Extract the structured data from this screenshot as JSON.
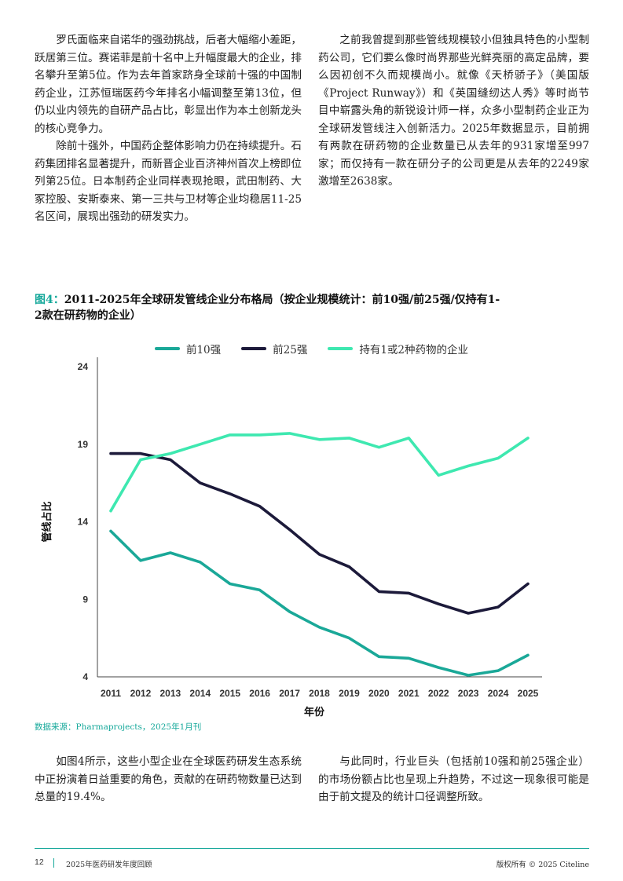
{
  "body": {
    "col1_p1": "罗氏面临来自诺华的强劲挑战，后者大幅缩小差距，跃居第三位。赛诺菲是前十名中上升幅度最大的企业，排名攀升至第5位。作为去年首家跻身全球前十强的中国制药企业，江苏恒瑞医药今年排名小幅调整至第13位，但仍以业内领先的自研产品占比，彰显出作为本土创新龙头的核心竞争力。",
    "col1_p2": "除前十强外，中国药企整体影响力仍在持续提升。石药集团排名显著提升，而新晋企业百济神州首次上榜即位列第25位。日本制药企业同样表现抢眼，武田制药、大冢控股、安斯泰来、第一三共与卫材等企业均稳居11-25名区间，展现出强劲的研发实力。",
    "col2_p1": "之前我曾提到那些管线规模较小但独具特色的小型制药公司，它们要么像时尚界那些光鲜亮丽的高定品牌，要么因初创不久而规模尚小。就像《天桥骄子》（美国版《Project Runway》）和《英国缝纫达人秀》等时尚节目中崭露头角的新锐设计师一样，众多小型制药企业正为全球研发管线注入创新活力。2025年数据显示，目前拥有两款在研药物的企业数量已从去年的931家增至997家；而仅持有一款在研分子的公司更是从去年的2249家激增至2638家。",
    "col1_p3": "如图4所示，这些小型企业在全球医药研发生态系统中正扮演着日益重要的角色，贡献的在研药物数量已达到总量的19.4%。",
    "col2_p2": "与此同时，行业巨头（包括前10强和前25强企业）的市场份额占比也呈现上升趋势，不过这一现象很可能是由于前文提及的统计口径调整所致。"
  },
  "figure": {
    "number": "图4：",
    "title": "2011-2025年全球研发管线企业分布格局（按企业规模统计：前10强/前25强/仅持有1-2款在研药物的企业）",
    "source": "数据来源：Pharmaprojects，2025年1月刊"
  },
  "chart_data": {
    "type": "line",
    "x": [
      2011,
      2012,
      2013,
      2014,
      2015,
      2016,
      2017,
      2018,
      2019,
      2020,
      2021,
      2022,
      2023,
      2024,
      2025
    ],
    "series": [
      {
        "name": "前10强",
        "color": "#1aa898",
        "values": [
          13.4,
          11.5,
          12.0,
          11.4,
          10.0,
          9.6,
          8.2,
          7.2,
          6.5,
          5.3,
          5.2,
          4.6,
          4.1,
          4.4,
          5.4
        ]
      },
      {
        "name": "前25强",
        "color": "#1c1a3a",
        "values": [
          18.4,
          18.4,
          18.0,
          16.5,
          15.8,
          15.0,
          13.5,
          11.9,
          11.1,
          9.5,
          9.4,
          8.7,
          8.1,
          8.5,
          10.0
        ]
      },
      {
        "name": "持有1或2种药物的企业",
        "color": "#3ee8b0",
        "values": [
          14.7,
          18.0,
          18.4,
          19.0,
          19.6,
          19.6,
          19.7,
          19.3,
          19.4,
          18.8,
          19.4,
          17.0,
          17.6,
          18.1,
          19.4
        ]
      }
    ],
    "yticks": [
      4,
      9,
      14,
      19,
      24
    ],
    "ylim": [
      4,
      24
    ],
    "xlabel": "年份",
    "ylabel": "管线占比",
    "grid": false,
    "legend": "top-center"
  },
  "footer": {
    "page_number": "12",
    "report_title": "2025年医药研发年度回顾",
    "copyright": "版权所有 © 2025 Citeline"
  }
}
